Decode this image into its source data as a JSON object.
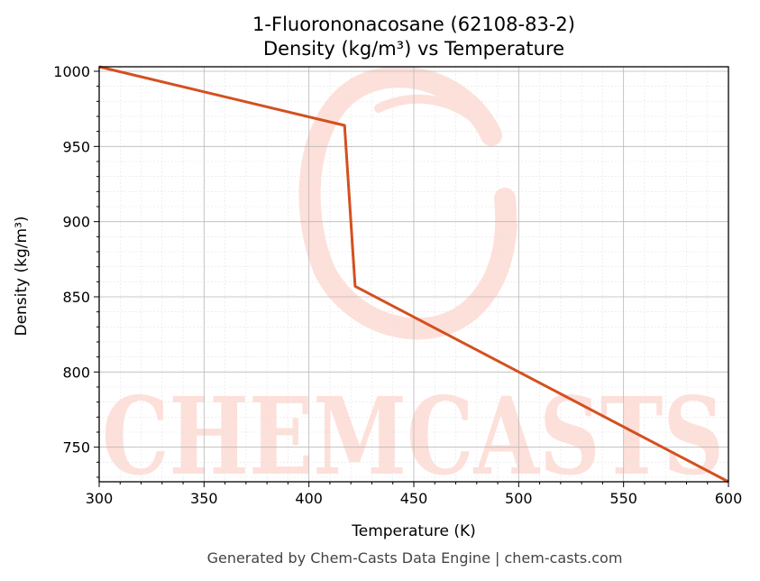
{
  "chart_data": {
    "type": "line",
    "title_line1": "1-Fluorononacosane (62108-83-2)",
    "title_line2": "Density (kg/m³) vs Temperature",
    "xlabel": "Temperature (K)",
    "ylabel": "Density (kg/m³)",
    "xlim": [
      300,
      600
    ],
    "ylim": [
      727,
      1003
    ],
    "x_ticks": [
      300,
      350,
      400,
      450,
      500,
      550,
      600
    ],
    "y_ticks": [
      750,
      800,
      850,
      900,
      950,
      1000
    ],
    "grid": true,
    "series": [
      {
        "color": "#d4501f",
        "points": [
          {
            "x": 300,
            "y": 1003
          },
          {
            "x": 417,
            "y": 964
          },
          {
            "x": 422,
            "y": 857
          },
          {
            "x": 600,
            "y": 727
          }
        ]
      }
    ]
  },
  "watermark": {
    "text": "CHEMCASTS",
    "color": "#fde0da"
  },
  "footer": "Generated by Chem-Casts Data Engine | chem-casts.com"
}
